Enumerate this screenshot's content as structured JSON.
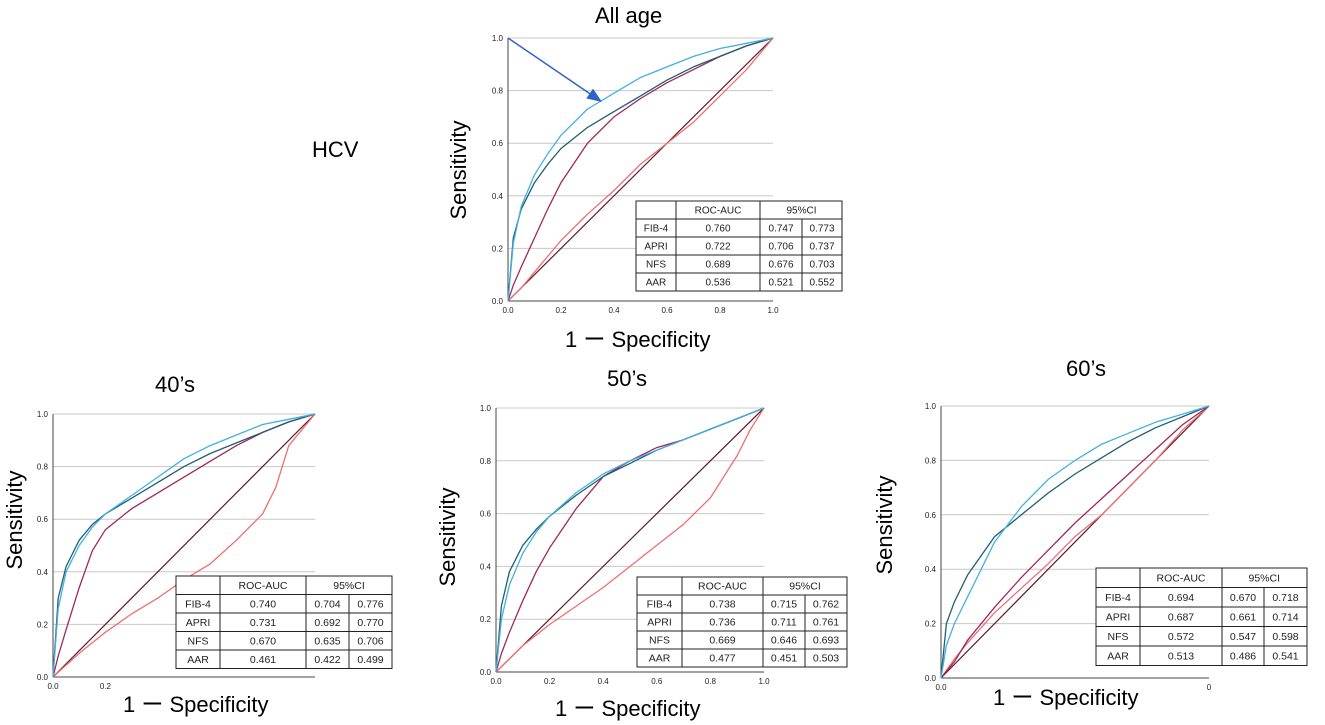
{
  "figure": {
    "row_label": "HCV",
    "palette": {
      "FIB-4": "#1f5f73",
      "APRI": "#43b0e0",
      "NFS": "#a0285a",
      "AAR": "#ee6e6e",
      "reference": "#5a1a2a",
      "grid": "#c8c8c8",
      "arrow": "#2e63c5"
    }
  },
  "chart_data": [
    {
      "type": "line",
      "title": "All age",
      "xlabel": "1 ー Specificity",
      "ylabel": "Sensitivity",
      "xlim": [
        0,
        1
      ],
      "ylim": [
        0,
        1
      ],
      "xticks": [
        "0.0",
        "0.2",
        "0.4",
        "0.6",
        "0.8",
        "1.0"
      ],
      "yticks": [
        "0.0",
        "0.2",
        "0.4",
        "0.6",
        "0.8",
        "1.0"
      ],
      "grid": "horizontal",
      "reference_line": true,
      "arrow": {
        "from": [
          0.0,
          1.0
        ],
        "to": [
          0.35,
          0.76
        ]
      },
      "series": [
        {
          "name": "FIB-4",
          "x": [
            0,
            0.02,
            0.05,
            0.1,
            0.15,
            0.2,
            0.3,
            0.4,
            0.5,
            0.6,
            0.7,
            0.8,
            0.9,
            1.0
          ],
          "y": [
            0,
            0.24,
            0.35,
            0.45,
            0.52,
            0.58,
            0.66,
            0.72,
            0.78,
            0.84,
            0.89,
            0.93,
            0.97,
            1.0
          ]
        },
        {
          "name": "APRI",
          "x": [
            0,
            0.02,
            0.05,
            0.1,
            0.15,
            0.2,
            0.3,
            0.4,
            0.5,
            0.6,
            0.7,
            0.8,
            0.9,
            1.0
          ],
          "y": [
            0,
            0.22,
            0.36,
            0.48,
            0.56,
            0.63,
            0.73,
            0.79,
            0.85,
            0.89,
            0.93,
            0.96,
            0.98,
            1.0
          ]
        },
        {
          "name": "NFS",
          "x": [
            0,
            0.02,
            0.05,
            0.1,
            0.15,
            0.2,
            0.3,
            0.4,
            0.5,
            0.6,
            0.7,
            0.8,
            0.9,
            1.0
          ],
          "y": [
            0,
            0.06,
            0.13,
            0.24,
            0.35,
            0.45,
            0.6,
            0.7,
            0.77,
            0.83,
            0.88,
            0.93,
            0.97,
            1.0
          ]
        },
        {
          "name": "AAR",
          "x": [
            0,
            0.05,
            0.1,
            0.2,
            0.3,
            0.4,
            0.5,
            0.6,
            0.7,
            0.8,
            0.9,
            1.0
          ],
          "y": [
            0,
            0.05,
            0.11,
            0.23,
            0.33,
            0.42,
            0.52,
            0.6,
            0.68,
            0.78,
            0.88,
            1.0
          ]
        }
      ],
      "table": {
        "header": [
          "",
          "ROC-AUC",
          "95%CI",
          ""
        ],
        "rows": [
          [
            "FIB-4",
            "0.760",
            "0.747",
            "0.773"
          ],
          [
            "APRI",
            "0.722",
            "0.706",
            "0.737"
          ],
          [
            "NFS",
            "0.689",
            "0.676",
            "0.703"
          ],
          [
            "AAR",
            "0.536",
            "0.521",
            "0.552"
          ]
        ]
      }
    },
    {
      "type": "line",
      "title": "40’s",
      "xlabel": "1 ー Specificity",
      "ylabel": "Sensitivity",
      "xlim": [
        0,
        1
      ],
      "ylim": [
        0,
        1
      ],
      "xticks": [
        "0.0",
        "0.2"
      ],
      "yticks": [
        "0.0",
        "0.2",
        "0.4",
        "0.6",
        "0.8",
        "1.0"
      ],
      "grid": "horizontal",
      "reference_line": true,
      "series": [
        {
          "name": "FIB-4",
          "x": [
            0,
            0.02,
            0.05,
            0.1,
            0.15,
            0.2,
            0.3,
            0.4,
            0.5,
            0.6,
            0.7,
            0.8,
            0.9,
            1.0
          ],
          "y": [
            0,
            0.3,
            0.42,
            0.52,
            0.58,
            0.62,
            0.68,
            0.74,
            0.8,
            0.85,
            0.89,
            0.93,
            0.97,
            1.0
          ]
        },
        {
          "name": "APRI",
          "x": [
            0,
            0.02,
            0.05,
            0.1,
            0.15,
            0.2,
            0.3,
            0.4,
            0.5,
            0.6,
            0.7,
            0.8,
            0.9,
            1.0
          ],
          "y": [
            0,
            0.26,
            0.4,
            0.5,
            0.57,
            0.62,
            0.69,
            0.76,
            0.83,
            0.88,
            0.92,
            0.96,
            0.98,
            1.0
          ]
        },
        {
          "name": "NFS",
          "x": [
            0,
            0.02,
            0.05,
            0.1,
            0.15,
            0.2,
            0.3,
            0.4,
            0.5,
            0.6,
            0.7,
            0.8,
            0.9,
            1.0
          ],
          "y": [
            0,
            0.08,
            0.18,
            0.34,
            0.48,
            0.56,
            0.64,
            0.7,
            0.76,
            0.82,
            0.88,
            0.93,
            0.97,
            1.0
          ]
        },
        {
          "name": "AAR",
          "x": [
            0,
            0.1,
            0.2,
            0.3,
            0.4,
            0.5,
            0.6,
            0.7,
            0.8,
            0.85,
            0.9,
            1.0
          ],
          "y": [
            0,
            0.09,
            0.17,
            0.24,
            0.3,
            0.37,
            0.43,
            0.52,
            0.62,
            0.72,
            0.88,
            1.0
          ]
        }
      ],
      "table": {
        "header": [
          "",
          "ROC-AUC",
          "95%CI",
          ""
        ],
        "rows": [
          [
            "FIB-4",
            "0.740",
            "0.704",
            "0.776"
          ],
          [
            "APRI",
            "0.731",
            "0.692",
            "0.770"
          ],
          [
            "NFS",
            "0.670",
            "0.635",
            "0.706"
          ],
          [
            "AAR",
            "0.461",
            "0.422",
            "0.499"
          ]
        ]
      }
    },
    {
      "type": "line",
      "title": "50’s",
      "xlabel": "1 ー Specificity",
      "ylabel": "Sensitivity",
      "xlim": [
        0,
        1
      ],
      "ylim": [
        0,
        1
      ],
      "xticks": [
        "0.0",
        "0.2",
        "0.4",
        "0.6",
        "0.8",
        "1.0"
      ],
      "yticks": [
        "0.0",
        "0.2",
        "0.4",
        "0.6",
        "0.8",
        "1.0"
      ],
      "grid": "horizontal",
      "reference_line": true,
      "series": [
        {
          "name": "FIB-4",
          "x": [
            0,
            0.02,
            0.05,
            0.1,
            0.15,
            0.2,
            0.3,
            0.4,
            0.5,
            0.6,
            0.7,
            0.8,
            0.9,
            1.0
          ],
          "y": [
            0,
            0.25,
            0.38,
            0.48,
            0.54,
            0.59,
            0.67,
            0.74,
            0.79,
            0.84,
            0.88,
            0.92,
            0.96,
            1.0
          ]
        },
        {
          "name": "APRI",
          "x": [
            0,
            0.02,
            0.05,
            0.1,
            0.15,
            0.2,
            0.3,
            0.4,
            0.5,
            0.6,
            0.7,
            0.8,
            0.9,
            1.0
          ],
          "y": [
            0,
            0.2,
            0.33,
            0.45,
            0.53,
            0.59,
            0.68,
            0.75,
            0.8,
            0.84,
            0.88,
            0.92,
            0.96,
            1.0
          ]
        },
        {
          "name": "NFS",
          "x": [
            0,
            0.02,
            0.05,
            0.1,
            0.15,
            0.2,
            0.3,
            0.4,
            0.5,
            0.6,
            0.7,
            0.8,
            0.9,
            1.0
          ],
          "y": [
            0,
            0.07,
            0.15,
            0.27,
            0.38,
            0.47,
            0.62,
            0.74,
            0.8,
            0.85,
            0.88,
            0.92,
            0.96,
            1.0
          ]
        },
        {
          "name": "AAR",
          "x": [
            0,
            0.1,
            0.2,
            0.3,
            0.4,
            0.5,
            0.6,
            0.7,
            0.8,
            0.9,
            0.95,
            1.0
          ],
          "y": [
            0,
            0.1,
            0.18,
            0.25,
            0.32,
            0.4,
            0.48,
            0.56,
            0.66,
            0.82,
            0.92,
            1.0
          ]
        }
      ],
      "table": {
        "header": [
          "",
          "ROC-AUC",
          "95%CI",
          ""
        ],
        "rows": [
          [
            "FIB-4",
            "0.738",
            "0.715",
            "0.762"
          ],
          [
            "APRI",
            "0.736",
            "0.711",
            "0.761"
          ],
          [
            "NFS",
            "0.669",
            "0.646",
            "0.693"
          ],
          [
            "AAR",
            "0.477",
            "0.451",
            "0.503"
          ]
        ]
      }
    },
    {
      "type": "line",
      "title": "60’s",
      "xlabel": "1 ー Specificity",
      "ylabel": "Sensitivity",
      "xlim": [
        0,
        1
      ],
      "ylim": [
        0,
        1
      ],
      "xticks": [
        "0.0",
        "0"
      ],
      "yticks": [
        "0.0",
        "0.2",
        "0.4",
        "0.6",
        "0.8",
        "1.0"
      ],
      "grid": "horizontal",
      "reference_line": true,
      "series": [
        {
          "name": "FIB-4",
          "x": [
            0,
            0.02,
            0.05,
            0.1,
            0.15,
            0.2,
            0.3,
            0.4,
            0.5,
            0.6,
            0.7,
            0.8,
            0.9,
            1.0
          ],
          "y": [
            0,
            0.2,
            0.28,
            0.38,
            0.45,
            0.52,
            0.6,
            0.68,
            0.75,
            0.81,
            0.87,
            0.92,
            0.96,
            1.0
          ]
        },
        {
          "name": "APRI",
          "x": [
            0,
            0.02,
            0.05,
            0.1,
            0.15,
            0.2,
            0.3,
            0.4,
            0.5,
            0.6,
            0.7,
            0.8,
            0.9,
            1.0
          ],
          "y": [
            0,
            0.12,
            0.2,
            0.3,
            0.4,
            0.5,
            0.63,
            0.73,
            0.8,
            0.86,
            0.9,
            0.94,
            0.97,
            1.0
          ]
        },
        {
          "name": "NFS",
          "x": [
            0,
            0.05,
            0.1,
            0.2,
            0.3,
            0.4,
            0.5,
            0.6,
            0.7,
            0.8,
            0.9,
            1.0
          ],
          "y": [
            0,
            0.06,
            0.14,
            0.26,
            0.37,
            0.47,
            0.57,
            0.66,
            0.75,
            0.84,
            0.93,
            1.0
          ]
        },
        {
          "name": "AAR",
          "x": [
            0,
            0.05,
            0.1,
            0.2,
            0.3,
            0.4,
            0.5,
            0.6,
            0.7,
            0.8,
            0.9,
            1.0
          ],
          "y": [
            0,
            0.07,
            0.13,
            0.24,
            0.33,
            0.42,
            0.52,
            0.6,
            0.7,
            0.8,
            0.91,
            1.0
          ]
        }
      ],
      "table": {
        "header": [
          "",
          "ROC-AUC",
          "95%CI",
          ""
        ],
        "rows": [
          [
            "FIB-4",
            "0.694",
            "0.670",
            "0.718"
          ],
          [
            "APRI",
            "0.687",
            "0.661",
            "0.714"
          ],
          [
            "NFS",
            "0.572",
            "0.547",
            "0.598"
          ],
          [
            "AAR",
            "0.513",
            "0.486",
            "0.541"
          ]
        ]
      }
    }
  ]
}
